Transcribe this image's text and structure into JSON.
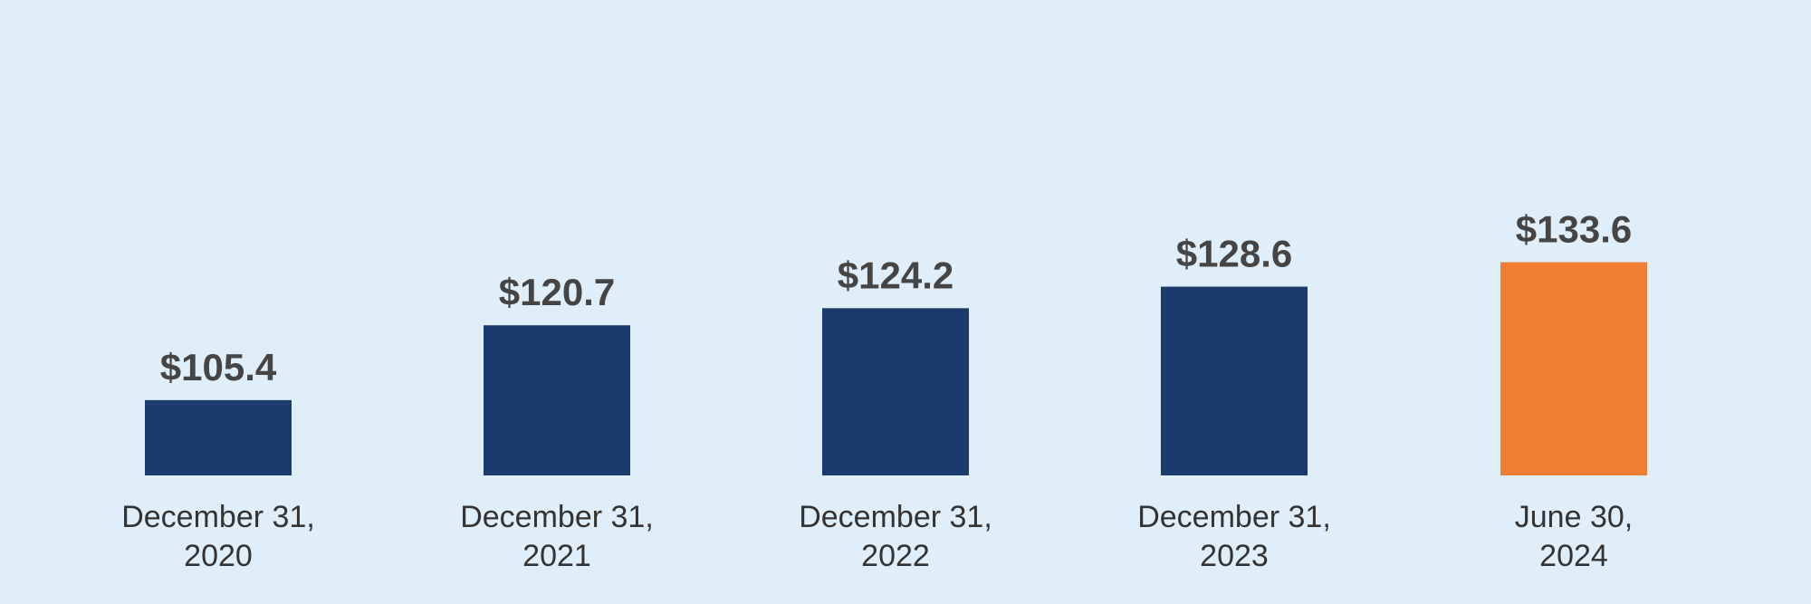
{
  "chart_data": {
    "type": "bar",
    "categories": [
      [
        "December 31,",
        "2020"
      ],
      [
        "December 31,",
        "2021"
      ],
      [
        "December 31,",
        "2022"
      ],
      [
        "December 31,",
        "2023"
      ],
      [
        "June 30,",
        "2024"
      ]
    ],
    "values": [
      105.4,
      120.7,
      124.2,
      128.6,
      133.6
    ],
    "value_labels": [
      "$105.4",
      "$120.7",
      "$124.2",
      "$128.6",
      "$133.6"
    ],
    "bar_colors": [
      "#1b3a6e",
      "#1b3a6e",
      "#1b3a6e",
      "#1b3a6e",
      "#ef7d32"
    ],
    "title": "",
    "xlabel": "",
    "ylabel": "",
    "ylim": [
      90,
      137
    ],
    "grid": false,
    "legend": "none"
  },
  "colors": {
    "background": "#e0eef9",
    "primary_bar": "#1b3a6e",
    "highlight_bar": "#ef7d32",
    "value_text": "#454545",
    "category_text": "#333333"
  }
}
